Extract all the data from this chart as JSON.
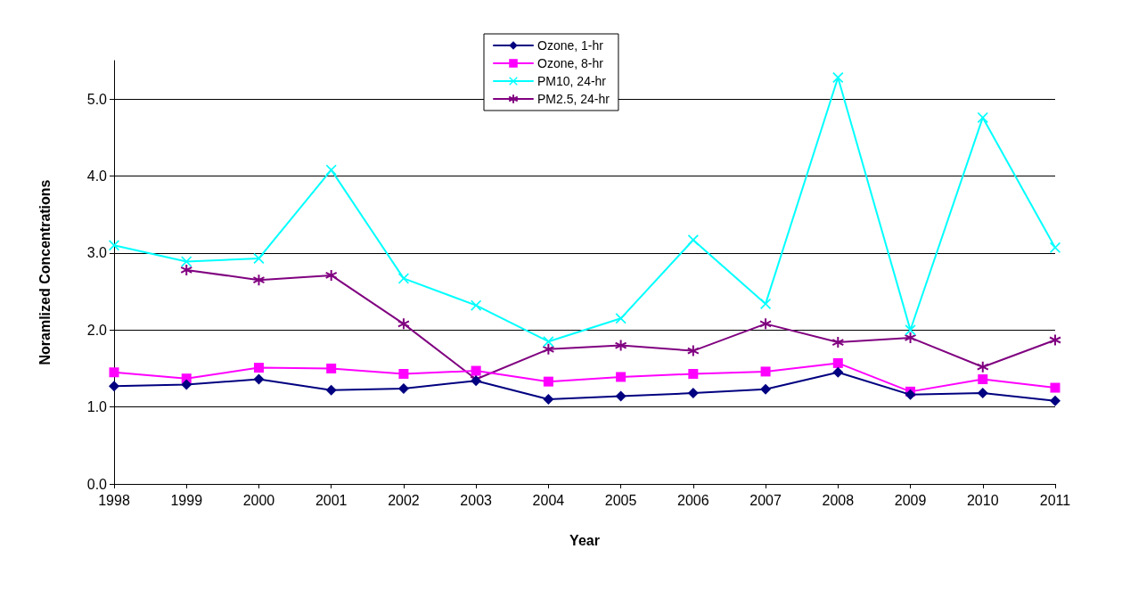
{
  "chart_data": {
    "type": "line",
    "xlabel": "Year",
    "ylabel": "Noramlized Concentrations",
    "categories": [
      "1998",
      "1999",
      "2000",
      "2001",
      "2002",
      "2003",
      "2004",
      "2005",
      "2006",
      "2007",
      "2008",
      "2009",
      "2010",
      "2011"
    ],
    "series": [
      {
        "name": "Ozone, 1-hr",
        "color": "#000080",
        "marker": "diamond",
        "values": [
          1.27,
          1.29,
          1.36,
          1.22,
          1.24,
          1.34,
          1.1,
          1.14,
          1.18,
          1.23,
          1.45,
          1.16,
          1.18,
          1.08
        ]
      },
      {
        "name": "Ozone, 8-hr",
        "color": "#ff00ff",
        "marker": "square",
        "values": [
          1.45,
          1.37,
          1.51,
          1.5,
          1.43,
          1.47,
          1.33,
          1.39,
          1.43,
          1.46,
          1.57,
          1.2,
          1.36,
          1.25
        ]
      },
      {
        "name": "PM10, 24-hr",
        "color": "#00ffff",
        "marker": "cross",
        "values": [
          3.1,
          2.89,
          2.93,
          4.08,
          2.67,
          2.32,
          1.85,
          2.15,
          3.17,
          2.34,
          5.28,
          2.0,
          4.76,
          3.07
        ]
      },
      {
        "name": "PM2.5, 24-hr",
        "color": "#800080",
        "marker": "star",
        "values": [
          null,
          2.78,
          2.65,
          2.71,
          2.08,
          1.36,
          1.75,
          1.8,
          1.73,
          2.08,
          1.84,
          1.9,
          1.52,
          1.87
        ]
      }
    ],
    "ylim": [
      0,
      5.5
    ],
    "yticks": [
      {
        "value": 0,
        "label": "0.0"
      },
      {
        "value": 1,
        "label": "1.0"
      },
      {
        "value": 2,
        "label": "2.0"
      },
      {
        "value": 3,
        "label": "3.0"
      },
      {
        "value": 4,
        "label": "4.0"
      },
      {
        "value": 5,
        "label": "5.0"
      }
    ],
    "grid": "y",
    "legend": "top",
    "line_style": "solid"
  }
}
